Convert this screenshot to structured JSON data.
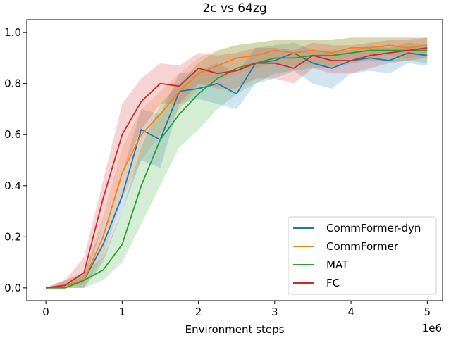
{
  "chart_data": {
    "type": "line",
    "title": "2c vs 64zg",
    "xlabel": "Environment steps",
    "ylabel": "",
    "x_offset_label": "1e6",
    "xlim": [
      -0.25,
      5.2
    ],
    "ylim": [
      -0.05,
      1.05
    ],
    "xticks": [
      0,
      1,
      2,
      3,
      4,
      5
    ],
    "xtick_labels": [
      "0",
      "1",
      "2",
      "3",
      "4",
      "5"
    ],
    "yticks": [
      0.0,
      0.2,
      0.4,
      0.6,
      0.8,
      1.0
    ],
    "ytick_labels": [
      "0.0",
      "0.2",
      "0.4",
      "0.6",
      "0.8",
      "1.0"
    ],
    "grid": false,
    "legend_position": "lower-right",
    "x": [
      0,
      0.25,
      0.5,
      0.75,
      1.0,
      1.25,
      1.5,
      1.75,
      2.0,
      2.25,
      2.5,
      2.75,
      3.0,
      3.25,
      3.5,
      3.75,
      4.0,
      4.25,
      4.5,
      4.75,
      5.0
    ],
    "series": [
      {
        "name": "CommFormer-dyn",
        "color": "#1f77b4",
        "values": [
          0.0,
          0.01,
          0.03,
          0.17,
          0.36,
          0.62,
          0.58,
          0.77,
          0.78,
          0.8,
          0.76,
          0.88,
          0.89,
          0.92,
          0.88,
          0.86,
          0.89,
          0.9,
          0.89,
          0.92,
          0.91
        ],
        "lower": [
          0.0,
          0.0,
          0.0,
          0.1,
          0.3,
          0.5,
          0.47,
          0.72,
          0.74,
          0.72,
          0.7,
          0.8,
          0.82,
          0.85,
          0.8,
          0.78,
          0.84,
          0.85,
          0.84,
          0.88,
          0.87
        ],
        "upper": [
          0.0,
          0.03,
          0.06,
          0.25,
          0.45,
          0.7,
          0.68,
          0.84,
          0.85,
          0.88,
          0.84,
          0.94,
          0.95,
          0.96,
          0.93,
          0.93,
          0.93,
          0.95,
          0.94,
          0.96,
          0.95
        ]
      },
      {
        "name": "CommFormer",
        "color": "#ff7f0e",
        "values": [
          0.0,
          0.01,
          0.03,
          0.2,
          0.45,
          0.6,
          0.68,
          0.77,
          0.84,
          0.87,
          0.9,
          0.91,
          0.93,
          0.92,
          0.93,
          0.92,
          0.94,
          0.94,
          0.95,
          0.94,
          0.95
        ],
        "lower": [
          0.0,
          0.0,
          0.0,
          0.12,
          0.35,
          0.5,
          0.6,
          0.7,
          0.78,
          0.82,
          0.84,
          0.86,
          0.88,
          0.87,
          0.88,
          0.87,
          0.9,
          0.9,
          0.91,
          0.9,
          0.91
        ],
        "upper": [
          0.0,
          0.03,
          0.06,
          0.28,
          0.55,
          0.7,
          0.77,
          0.84,
          0.9,
          0.93,
          0.95,
          0.96,
          0.97,
          0.97,
          0.97,
          0.97,
          0.98,
          0.98,
          0.98,
          0.98,
          0.98
        ]
      },
      {
        "name": "MAT",
        "color": "#2ca02c",
        "values": [
          0.0,
          0.0,
          0.03,
          0.07,
          0.17,
          0.4,
          0.58,
          0.68,
          0.76,
          0.82,
          0.86,
          0.88,
          0.9,
          0.9,
          0.91,
          0.91,
          0.92,
          0.93,
          0.93,
          0.93,
          0.93
        ],
        "lower": [
          0.0,
          0.0,
          0.0,
          0.03,
          0.1,
          0.25,
          0.4,
          0.55,
          0.62,
          0.7,
          0.76,
          0.8,
          0.84,
          0.85,
          0.86,
          0.86,
          0.88,
          0.89,
          0.89,
          0.89,
          0.88
        ],
        "upper": [
          0.0,
          0.01,
          0.06,
          0.12,
          0.3,
          0.55,
          0.72,
          0.8,
          0.88,
          0.93,
          0.95,
          0.96,
          0.97,
          0.97,
          0.97,
          0.97,
          0.98,
          0.98,
          0.98,
          0.98,
          0.98
        ]
      },
      {
        "name": "FC",
        "color": "#d62728",
        "values": [
          0.0,
          0.01,
          0.06,
          0.35,
          0.6,
          0.73,
          0.8,
          0.79,
          0.86,
          0.84,
          0.85,
          0.88,
          0.88,
          0.86,
          0.91,
          0.89,
          0.89,
          0.91,
          0.92,
          0.93,
          0.94
        ],
        "lower": [
          0.0,
          0.0,
          0.02,
          0.25,
          0.45,
          0.62,
          0.72,
          0.72,
          0.8,
          0.78,
          0.78,
          0.82,
          0.82,
          0.8,
          0.86,
          0.84,
          0.84,
          0.86,
          0.88,
          0.89,
          0.9
        ],
        "upper": [
          0.0,
          0.03,
          0.12,
          0.42,
          0.72,
          0.82,
          0.88,
          0.87,
          0.92,
          0.91,
          0.92,
          0.94,
          0.94,
          0.93,
          0.96,
          0.95,
          0.95,
          0.96,
          0.97,
          0.97,
          0.98
        ]
      }
    ]
  }
}
